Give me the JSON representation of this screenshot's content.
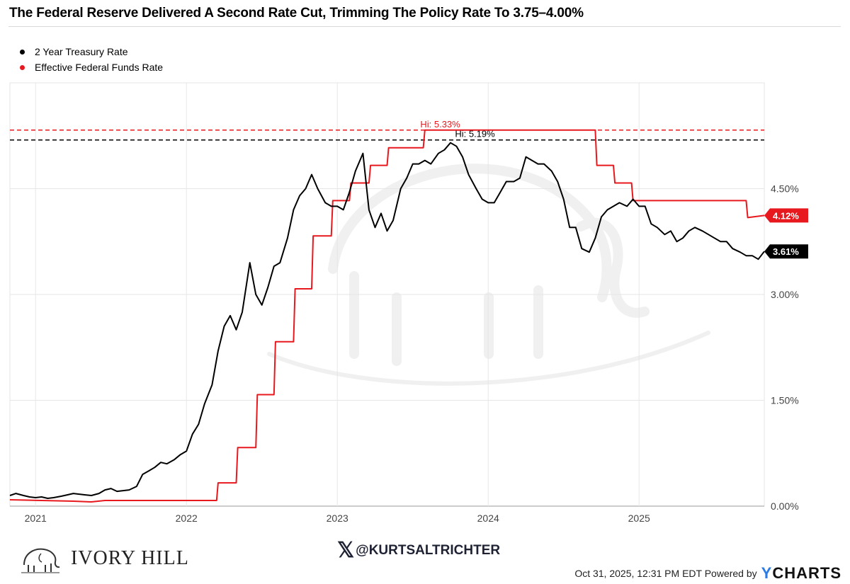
{
  "title": "The Federal Reserve Delivered A Second Rate Cut, Trimming The Policy Rate To 3.75–4.00%",
  "legend": [
    {
      "label": "2 Year Treasury Rate",
      "color": "#000000"
    },
    {
      "label": "Effective Federal Funds Rate",
      "color": "#e8191e"
    }
  ],
  "colors": {
    "treasury": "#000000",
    "ffr": "#e8191e",
    "grid": "#e6e6e6"
  },
  "chart_data": {
    "type": "line",
    "xlim": [
      2020.83,
      2025.83
    ],
    "ylim": [
      0,
      6.0
    ],
    "x_ticks": [
      2021,
      2022,
      2023,
      2024,
      2025
    ],
    "x_tick_labels": [
      "2021",
      "2022",
      "2023",
      "2024",
      "2025"
    ],
    "y_ticks": [
      0,
      1.5,
      3.0,
      4.5
    ],
    "y_tick_labels": [
      "0.00%",
      "1.50%",
      "3.00%",
      "4.50%"
    ],
    "series": [
      {
        "name": "2 Year Treasury Rate",
        "color": "#000000",
        "points": [
          [
            2020.83,
            0.15
          ],
          [
            2020.87,
            0.18
          ],
          [
            2020.92,
            0.15
          ],
          [
            2020.96,
            0.13
          ],
          [
            2021.0,
            0.12
          ],
          [
            2021.04,
            0.13
          ],
          [
            2021.08,
            0.11
          ],
          [
            2021.12,
            0.12
          ],
          [
            2021.17,
            0.14
          ],
          [
            2021.21,
            0.16
          ],
          [
            2021.25,
            0.18
          ],
          [
            2021.29,
            0.17
          ],
          [
            2021.33,
            0.16
          ],
          [
            2021.37,
            0.15
          ],
          [
            2021.42,
            0.18
          ],
          [
            2021.46,
            0.23
          ],
          [
            2021.5,
            0.25
          ],
          [
            2021.54,
            0.21
          ],
          [
            2021.58,
            0.22
          ],
          [
            2021.62,
            0.23
          ],
          [
            2021.67,
            0.28
          ],
          [
            2021.71,
            0.45
          ],
          [
            2021.75,
            0.5
          ],
          [
            2021.79,
            0.55
          ],
          [
            2021.83,
            0.62
          ],
          [
            2021.87,
            0.6
          ],
          [
            2021.92,
            0.66
          ],
          [
            2021.96,
            0.73
          ],
          [
            2022.0,
            0.78
          ],
          [
            2022.04,
            1.02
          ],
          [
            2022.08,
            1.16
          ],
          [
            2022.12,
            1.45
          ],
          [
            2022.17,
            1.72
          ],
          [
            2022.21,
            2.2
          ],
          [
            2022.25,
            2.55
          ],
          [
            2022.29,
            2.7
          ],
          [
            2022.33,
            2.5
          ],
          [
            2022.37,
            2.75
          ],
          [
            2022.42,
            3.45
          ],
          [
            2022.46,
            3.0
          ],
          [
            2022.5,
            2.85
          ],
          [
            2022.54,
            3.1
          ],
          [
            2022.58,
            3.4
          ],
          [
            2022.62,
            3.45
          ],
          [
            2022.67,
            3.8
          ],
          [
            2022.71,
            4.2
          ],
          [
            2022.75,
            4.4
          ],
          [
            2022.79,
            4.5
          ],
          [
            2022.83,
            4.7
          ],
          [
            2022.87,
            4.5
          ],
          [
            2022.92,
            4.3
          ],
          [
            2022.96,
            4.25
          ],
          [
            2023.0,
            4.25
          ],
          [
            2023.04,
            4.2
          ],
          [
            2023.08,
            4.45
          ],
          [
            2023.12,
            4.75
          ],
          [
            2023.17,
            5.0
          ],
          [
            2023.21,
            4.2
          ],
          [
            2023.25,
            3.95
          ],
          [
            2023.29,
            4.15
          ],
          [
            2023.33,
            3.9
          ],
          [
            2023.37,
            4.05
          ],
          [
            2023.42,
            4.5
          ],
          [
            2023.46,
            4.65
          ],
          [
            2023.5,
            4.85
          ],
          [
            2023.54,
            4.85
          ],
          [
            2023.58,
            4.9
          ],
          [
            2023.62,
            4.85
          ],
          [
            2023.67,
            5.0
          ],
          [
            2023.71,
            5.05
          ],
          [
            2023.75,
            5.15
          ],
          [
            2023.79,
            5.1
          ],
          [
            2023.83,
            4.95
          ],
          [
            2023.87,
            4.7
          ],
          [
            2023.92,
            4.5
          ],
          [
            2023.96,
            4.35
          ],
          [
            2024.0,
            4.3
          ],
          [
            2024.04,
            4.3
          ],
          [
            2024.08,
            4.45
          ],
          [
            2024.12,
            4.6
          ],
          [
            2024.17,
            4.6
          ],
          [
            2024.21,
            4.65
          ],
          [
            2024.25,
            4.95
          ],
          [
            2024.29,
            4.9
          ],
          [
            2024.33,
            4.85
          ],
          [
            2024.37,
            4.85
          ],
          [
            2024.42,
            4.75
          ],
          [
            2024.46,
            4.6
          ],
          [
            2024.5,
            4.35
          ],
          [
            2024.54,
            3.95
          ],
          [
            2024.58,
            3.95
          ],
          [
            2024.62,
            3.65
          ],
          [
            2024.67,
            3.6
          ],
          [
            2024.71,
            3.8
          ],
          [
            2024.75,
            4.1
          ],
          [
            2024.79,
            4.2
          ],
          [
            2024.83,
            4.25
          ],
          [
            2024.87,
            4.3
          ],
          [
            2024.92,
            4.25
          ],
          [
            2024.96,
            4.35
          ],
          [
            2025.0,
            4.25
          ],
          [
            2025.04,
            4.25
          ],
          [
            2025.08,
            4.0
          ],
          [
            2025.12,
            3.95
          ],
          [
            2025.17,
            3.85
          ],
          [
            2025.21,
            3.9
          ],
          [
            2025.25,
            3.75
          ],
          [
            2025.29,
            3.8
          ],
          [
            2025.33,
            3.9
          ],
          [
            2025.37,
            3.95
          ],
          [
            2025.42,
            3.9
          ],
          [
            2025.46,
            3.85
          ],
          [
            2025.5,
            3.8
          ],
          [
            2025.54,
            3.75
          ],
          [
            2025.58,
            3.75
          ],
          [
            2025.62,
            3.65
          ],
          [
            2025.67,
            3.6
          ],
          [
            2025.71,
            3.55
          ],
          [
            2025.75,
            3.55
          ],
          [
            2025.79,
            3.5
          ],
          [
            2025.83,
            3.61
          ]
        ],
        "last_label": "3.61%",
        "hi_label": "Hi: 5.19%",
        "hi_value": 5.19
      },
      {
        "name": "Effective Federal Funds Rate",
        "color": "#e8191e",
        "points": [
          [
            2020.83,
            0.09
          ],
          [
            2021.25,
            0.07
          ],
          [
            2021.37,
            0.06
          ],
          [
            2021.46,
            0.08
          ],
          [
            2021.62,
            0.08
          ],
          [
            2022.2,
            0.08
          ],
          [
            2022.21,
            0.33
          ],
          [
            2022.33,
            0.33
          ],
          [
            2022.34,
            0.83
          ],
          [
            2022.46,
            0.83
          ],
          [
            2022.47,
            1.58
          ],
          [
            2022.58,
            1.58
          ],
          [
            2022.59,
            2.33
          ],
          [
            2022.71,
            2.33
          ],
          [
            2022.72,
            3.08
          ],
          [
            2022.83,
            3.08
          ],
          [
            2022.84,
            3.83
          ],
          [
            2022.96,
            3.83
          ],
          [
            2022.97,
            4.33
          ],
          [
            2023.08,
            4.33
          ],
          [
            2023.09,
            4.58
          ],
          [
            2023.21,
            4.58
          ],
          [
            2023.22,
            4.83
          ],
          [
            2023.33,
            4.83
          ],
          [
            2023.34,
            5.08
          ],
          [
            2023.57,
            5.08
          ],
          [
            2023.58,
            5.33
          ],
          [
            2024.71,
            5.33
          ],
          [
            2024.72,
            4.83
          ],
          [
            2024.83,
            4.83
          ],
          [
            2024.84,
            4.58
          ],
          [
            2024.95,
            4.58
          ],
          [
            2024.96,
            4.33
          ],
          [
            2025.71,
            4.33
          ],
          [
            2025.72,
            4.09
          ],
          [
            2025.83,
            4.12
          ]
        ],
        "last_label": "4.12%",
        "hi_label": "Hi: 5.33%",
        "hi_value": 5.33
      }
    ]
  },
  "footer": {
    "brand_name": "IVORY HILL",
    "handle": "@KURTSALTRICHTER",
    "timestamp": "Oct 31, 2025, 12:31 PM EDT Powered by",
    "ycharts_y": "Y",
    "ycharts_rest": "CHARTS"
  }
}
